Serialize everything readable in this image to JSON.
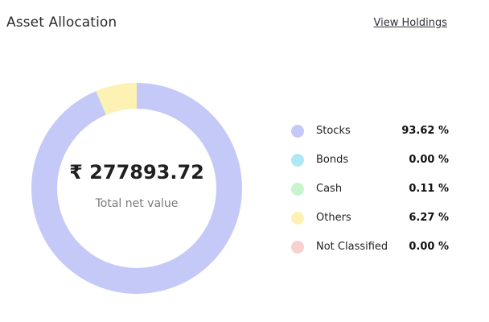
{
  "header": {
    "title": "Asset Allocation",
    "link_label": "View Holdings"
  },
  "summary": {
    "total_value": "₹ 277893.72",
    "caption": "Total net value"
  },
  "allocation": [
    {
      "label": "Stocks",
      "value_text": "93.62 %",
      "percent": 93.62,
      "color": "#c5c9f7"
    },
    {
      "label": "Bonds",
      "value_text": "0.00 %",
      "percent": 0.0,
      "color": "#aee8f5"
    },
    {
      "label": "Cash",
      "value_text": "0.11 %",
      "percent": 0.11,
      "color": "#c8f5cd"
    },
    {
      "label": "Others",
      "value_text": "6.27 %",
      "percent": 6.27,
      "color": "#fdf2b3"
    },
    {
      "label": "Not Classified",
      "value_text": "0.00 %",
      "percent": 0.0,
      "color": "#f9d0d0"
    }
  ]
}
